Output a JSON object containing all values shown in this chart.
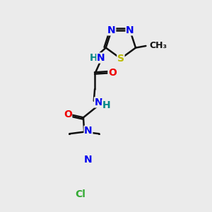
{
  "background_color": "#ebebeb",
  "atom_colors": {
    "N": "#0000ee",
    "O": "#ee0000",
    "S": "#bbbb00",
    "Cl": "#33aa33",
    "C": "#111111",
    "H": "#008888"
  },
  "bond_color": "#111111",
  "bond_width": 1.8,
  "font_size": 10
}
